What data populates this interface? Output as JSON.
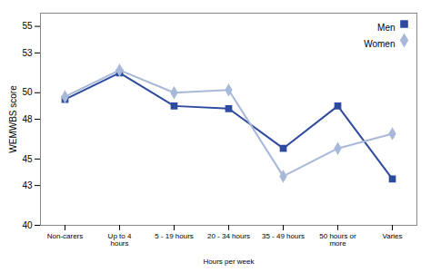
{
  "chart_data": {
    "type": "line",
    "categories": [
      "Non-carers",
      "Up to 4\nhours",
      "5 - 19 hours",
      "20 - 34 hours",
      "35 - 49 hours",
      "50 hours or\nmore",
      "Varies"
    ],
    "series": [
      {
        "name": "Men",
        "color": "#2E4B9E",
        "marker": "square",
        "values": [
          49.5,
          51.5,
          49.0,
          48.8,
          45.8,
          49.0,
          43.5
        ]
      },
      {
        "name": "Women",
        "color": "#A8B8D8",
        "marker": "diamond",
        "values": [
          49.7,
          51.7,
          50.0,
          50.2,
          43.7,
          45.8,
          46.9
        ]
      }
    ],
    "xlabel": "Hours per week",
    "ylabel": "WEMWBS score",
    "ylim": [
      40,
      56
    ],
    "yticks": [
      40,
      43,
      45,
      48,
      50,
      53,
      55
    ],
    "legend": "upper right",
    "grid": false
  }
}
